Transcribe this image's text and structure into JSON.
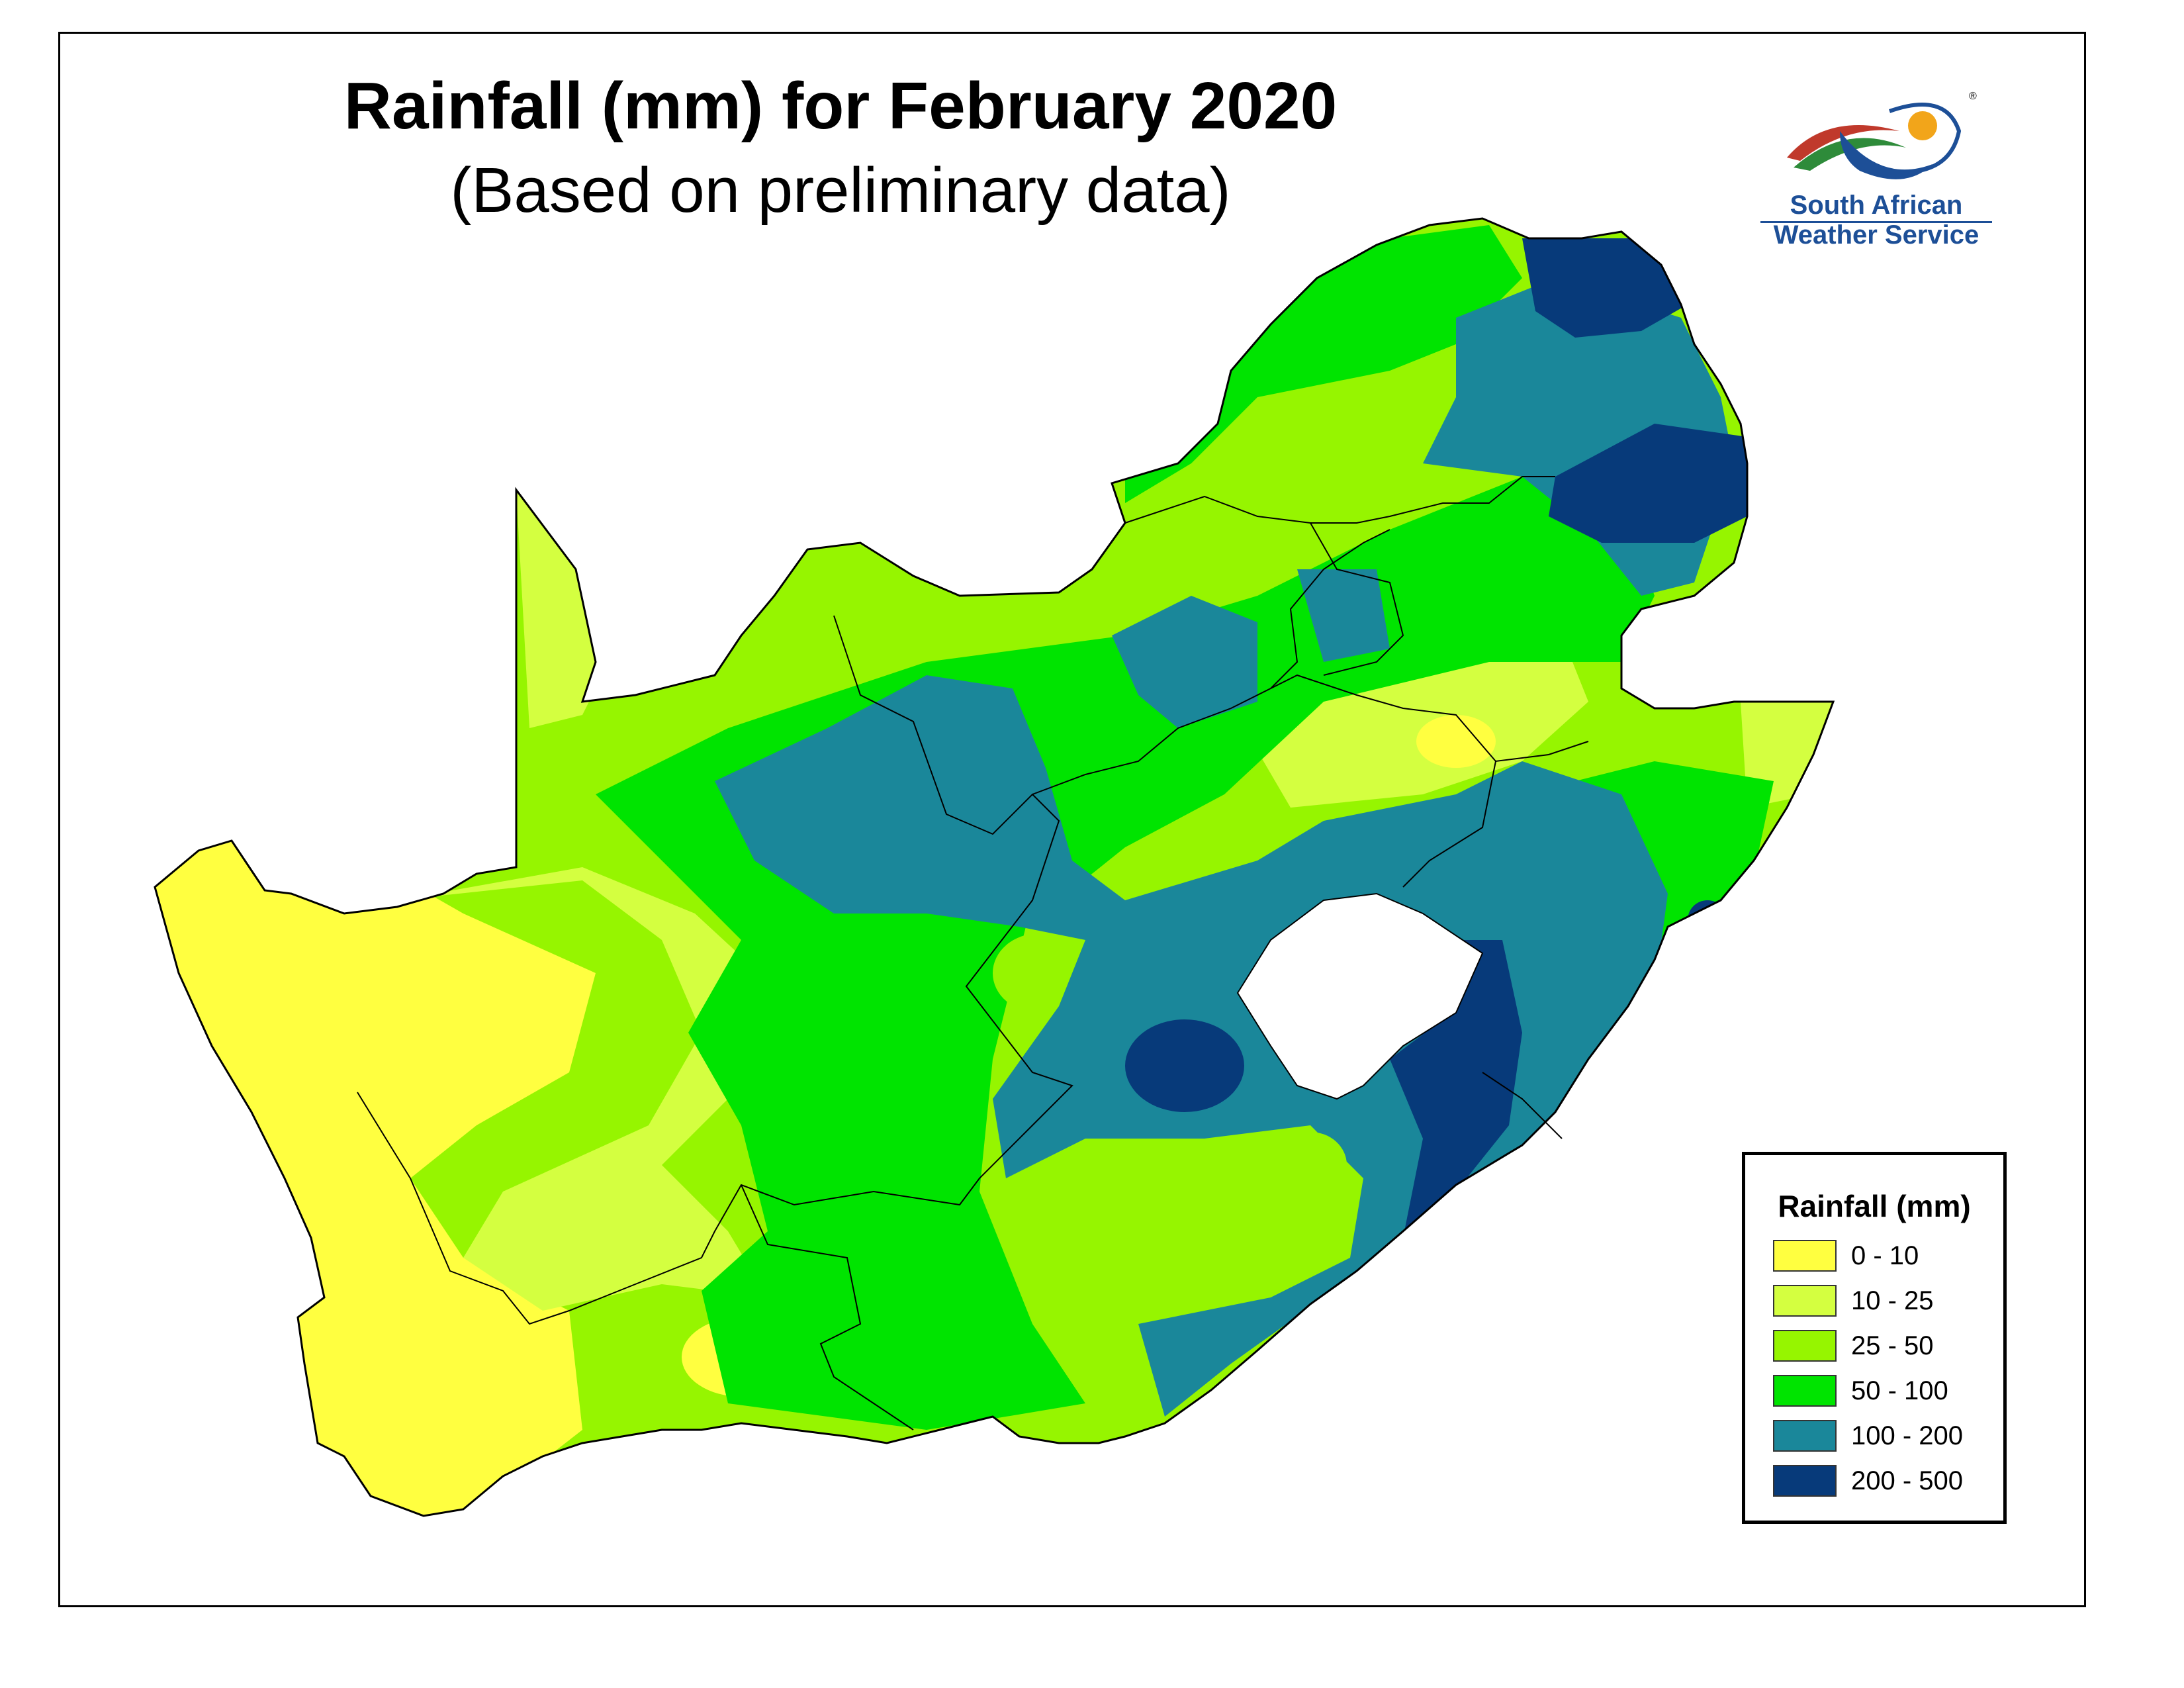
{
  "title": "Rainfall (mm) for February 2020",
  "subtitle": "(Based on preliminary data)",
  "logo": {
    "line1": "South African",
    "line2": "Weather Service",
    "mark": "®"
  },
  "legend": {
    "title": "Rainfall (mm)",
    "items": [
      {
        "label": "0 - 10",
        "color": "#ffff40"
      },
      {
        "label": "10 - 25",
        "color": "#d4ff40"
      },
      {
        "label": "25 - 50",
        "color": "#96f500"
      },
      {
        "label": "50 - 100",
        "color": "#00e400"
      },
      {
        "label": "100 - 200",
        "color": "#1a879a"
      },
      {
        "label": "200 - 500",
        "color": "#073a7a"
      }
    ]
  },
  "colors": {
    "lesotho": "#ffffff",
    "border": "#000000",
    "logo_blue": "#1d4f97"
  }
}
